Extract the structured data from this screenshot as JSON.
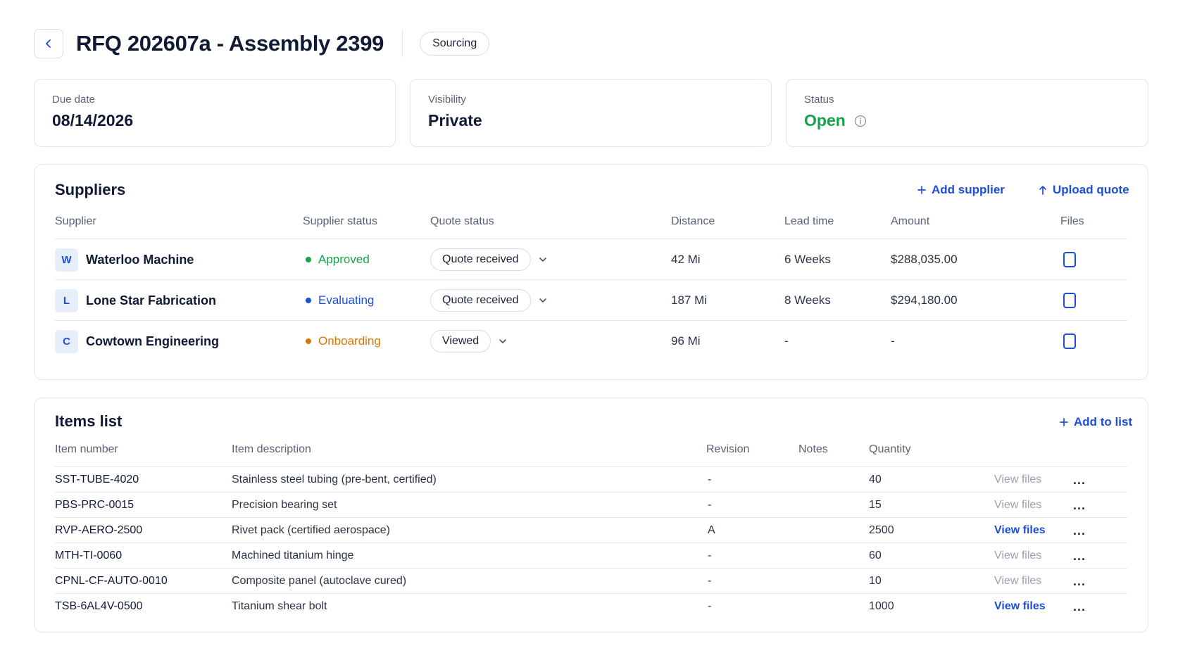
{
  "header": {
    "title": "RFQ 202607a - Assembly 2399",
    "stage_badge": "Sourcing"
  },
  "cards": {
    "due_date": {
      "label": "Due date",
      "value": "08/14/2026"
    },
    "visibility": {
      "label": "Visibility",
      "value": "Private"
    },
    "status": {
      "label": "Status",
      "value": "Open"
    }
  },
  "suppliers": {
    "title": "Suppliers",
    "add_supplier": "Add supplier",
    "upload_quote": "Upload quote",
    "columns": {
      "supplier": "Supplier",
      "supplier_status": "Supplier status",
      "quote_status": "Quote status",
      "distance": "Distance",
      "lead_time": "Lead time",
      "amount": "Amount",
      "files": "Files"
    },
    "rows": [
      {
        "initial": "W",
        "name": "Waterloo Machine",
        "status": "Approved",
        "status_color": "#16a34a",
        "quote_status": "Quote received",
        "distance": "42 Mi",
        "lead_time": "6 Weeks",
        "amount": "$288,035.00"
      },
      {
        "initial": "L",
        "name": "Lone Star Fabrication",
        "status": "Evaluating",
        "status_color": "#1d4ed8",
        "quote_status": "Quote received",
        "distance": "187 Mi",
        "lead_time": "8 Weeks",
        "amount": "$294,180.00"
      },
      {
        "initial": "C",
        "name": "Cowtown Engineering",
        "status": "Onboarding",
        "status_color": "#d97706",
        "quote_status": "Viewed",
        "distance": "96 Mi",
        "lead_time": "-",
        "amount": "-"
      }
    ]
  },
  "items": {
    "title": "Items list",
    "add_to_list": "Add to list",
    "columns": {
      "item_number": "Item number",
      "item_description": "Item description",
      "revision": "Revision",
      "notes": "Notes",
      "quantity": "Quantity"
    },
    "view_files_label": "View files",
    "more_label": "...",
    "rows": [
      {
        "number": "SST-TUBE-4020",
        "description": "Stainless steel tubing (pre-bent, certified)",
        "revision": "-",
        "notes": "",
        "quantity": "40",
        "files_active": false
      },
      {
        "number": "PBS-PRC-0015",
        "description": "Precision bearing set",
        "revision": "-",
        "notes": "",
        "quantity": "15",
        "files_active": false
      },
      {
        "number": "RVP-AERO-2500",
        "description": "Rivet pack (certified aerospace)",
        "revision": "A",
        "notes": "",
        "quantity": "2500",
        "files_active": true
      },
      {
        "number": "MTH-TI-0060",
        "description": "Machined titanium hinge",
        "revision": "-",
        "notes": "",
        "quantity": "60",
        "files_active": false
      },
      {
        "number": "CPNL-CF-AUTO-0010",
        "description": "Composite panel (autoclave cured)",
        "revision": "-",
        "notes": "",
        "quantity": "10",
        "files_active": false
      },
      {
        "number": "TSB-6AL4V-0500",
        "description": "Titanium shear bolt",
        "revision": "-",
        "notes": "",
        "quantity": "1000",
        "files_active": true
      }
    ]
  },
  "icons": {
    "back": "chevron-left-icon",
    "info": "info-icon",
    "plus": "plus-icon",
    "upload": "arrow-up-icon",
    "dropdown": "chevron-down-icon",
    "file": "file-icon"
  },
  "colors": {
    "accent": "#1d4ed8",
    "open": "#16a34a",
    "approved": "#16a34a",
    "evaluating": "#1d4ed8",
    "onboarding": "#d97706"
  }
}
